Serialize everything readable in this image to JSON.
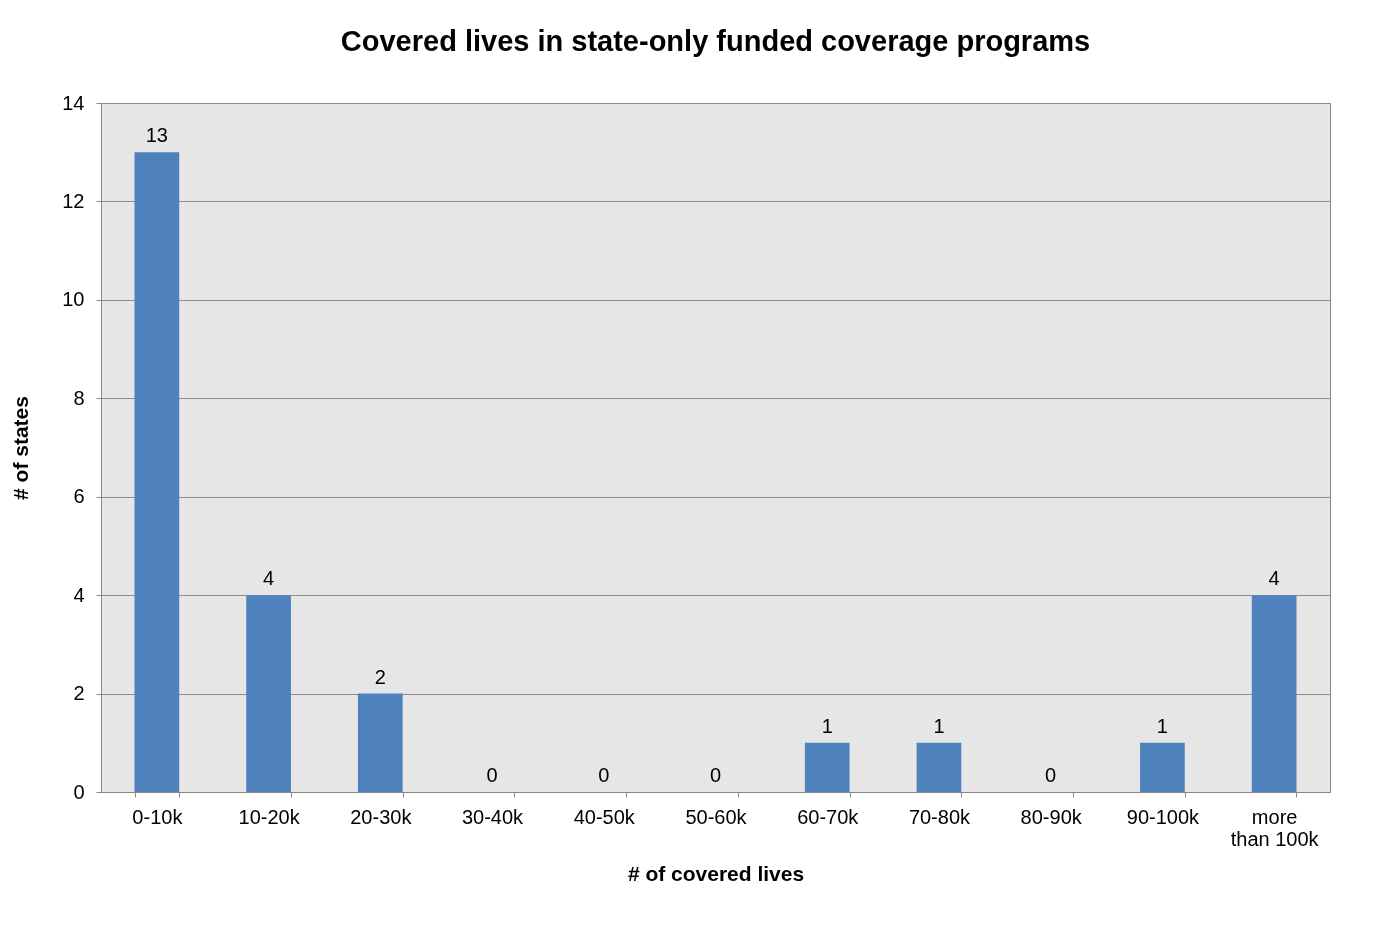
{
  "chart_data": {
    "type": "bar",
    "title": "Covered lives in state-only funded coverage programs",
    "xlabel": "# of covered lives",
    "ylabel": "# of states",
    "categories": [
      "0-10k",
      "10-20k",
      "20-30k",
      "30-40k",
      "40-50k",
      "50-60k",
      "60-70k",
      "70-80k",
      "80-90k",
      "90-100k",
      "more than 100k"
    ],
    "values": [
      13,
      4,
      2,
      0,
      0,
      0,
      1,
      1,
      0,
      1,
      4
    ],
    "color": "#4f81bd",
    "ylim": [
      0,
      14
    ],
    "yticks": [
      0,
      2,
      4,
      6,
      8,
      10,
      12,
      14
    ],
    "grid": "y",
    "data_labels": true
  }
}
